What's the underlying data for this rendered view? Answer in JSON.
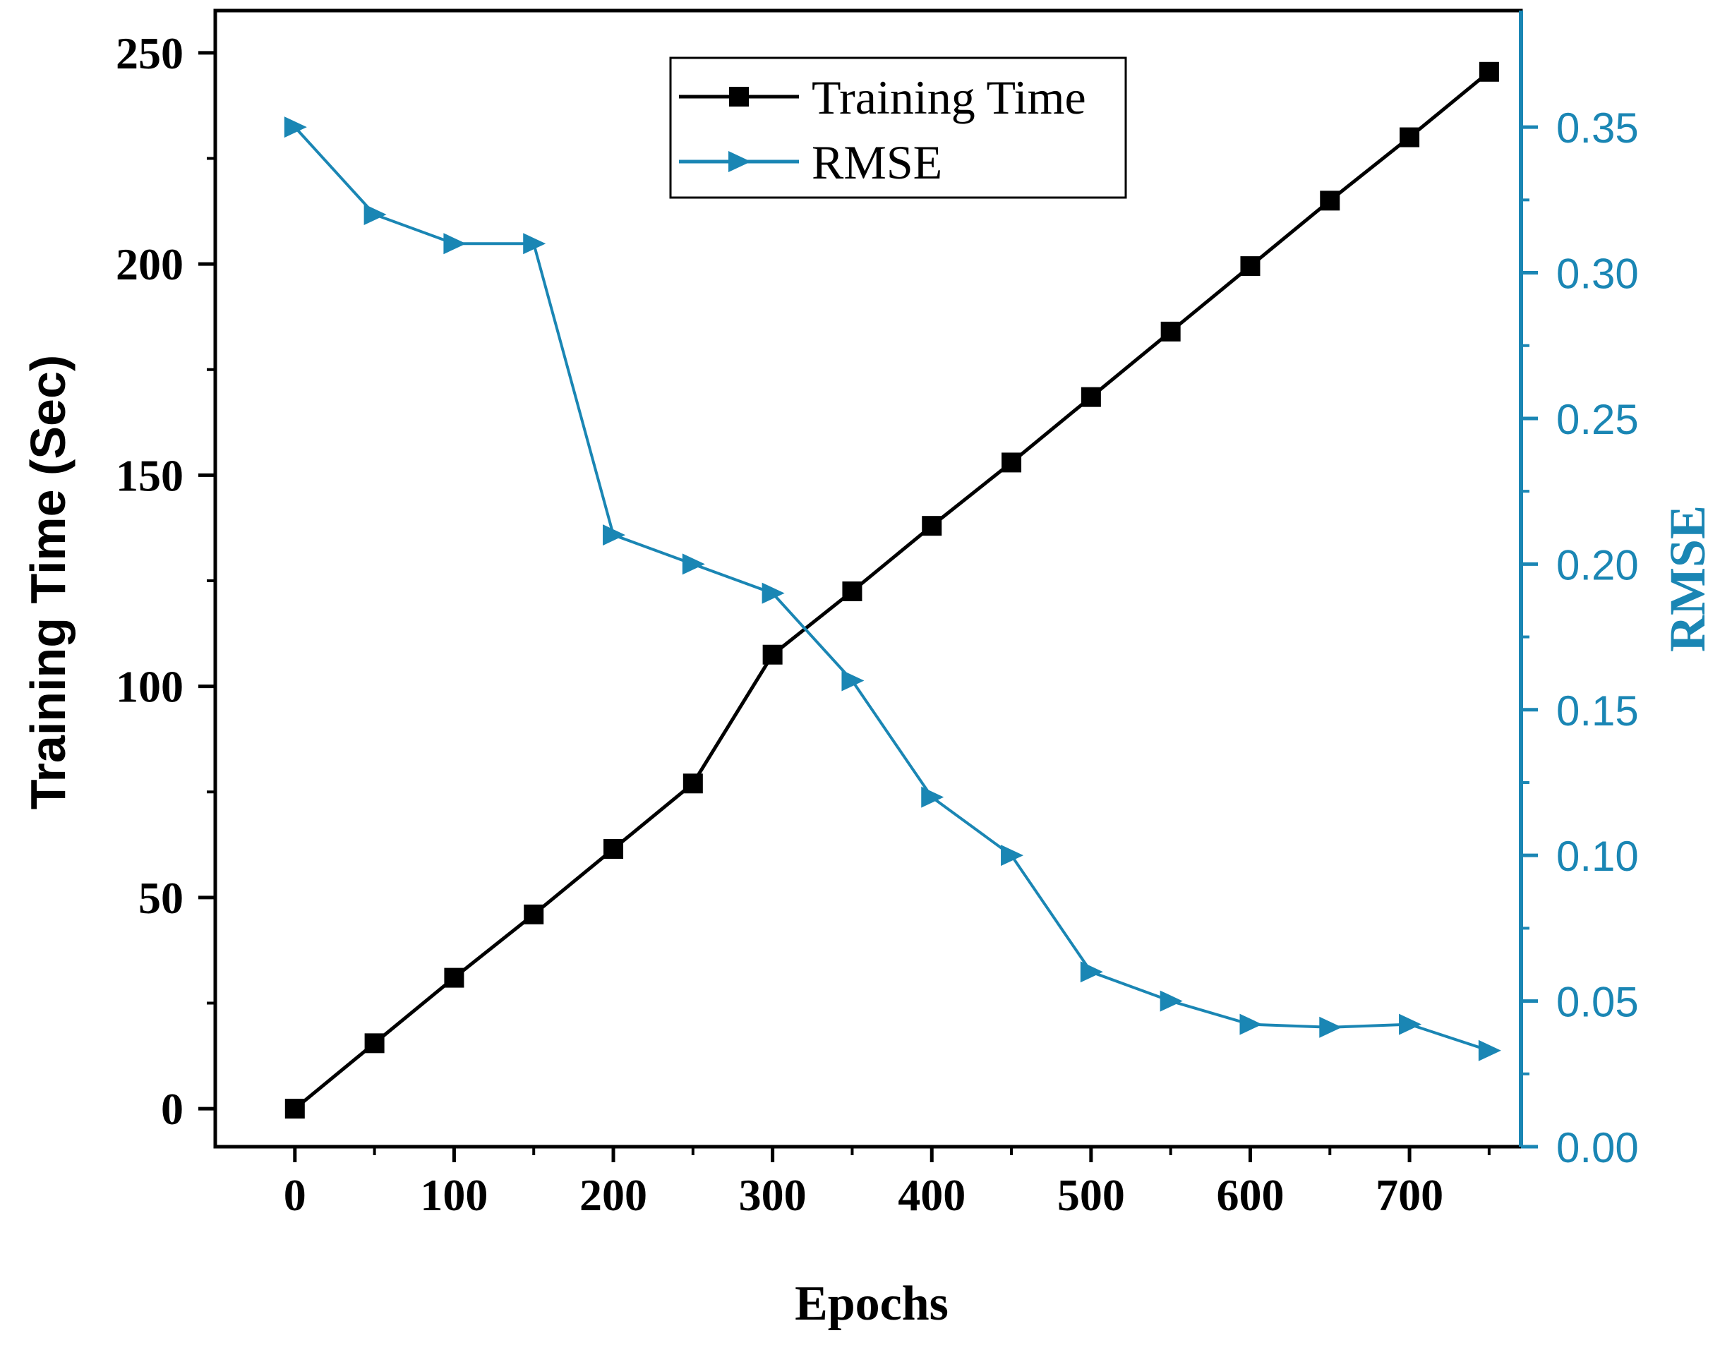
{
  "chart_data": {
    "type": "line",
    "title": "",
    "xlabel": "Epochs",
    "ylabel_left": "Training Time (Sec)",
    "ylabel_right": "RMSE",
    "x": [
      0,
      50,
      100,
      150,
      200,
      250,
      300,
      350,
      400,
      450,
      500,
      550,
      600,
      650,
      700,
      750
    ],
    "xticks": [
      0,
      100,
      200,
      300,
      400,
      500,
      600,
      700
    ],
    "xtick_labels": [
      "0",
      "100",
      "200",
      "300",
      "400",
      "500",
      "600",
      "700"
    ],
    "xlim": [
      -50,
      770
    ],
    "ylim_left": [
      -9,
      260
    ],
    "yticks_left": [
      0,
      50,
      100,
      150,
      200,
      250
    ],
    "ytick_labels_left": [
      "0",
      "50",
      "100",
      "150",
      "200",
      "250"
    ],
    "ylim_right": [
      0,
      0.39
    ],
    "yticks_right": [
      0,
      0.05,
      0.1,
      0.15,
      0.2,
      0.25,
      0.3,
      0.35
    ],
    "ytick_labels_right": [
      "0.00",
      "0.05",
      "0.10",
      "0.15",
      "0.20",
      "0.25",
      "0.30",
      "0.35"
    ],
    "grid": false,
    "legend_position": "top-center",
    "series": [
      {
        "name": "Training Time",
        "axis": "left",
        "marker": "square",
        "color": "#000000",
        "values": [
          0,
          15.5,
          31,
          46,
          61.5,
          77,
          107.5,
          122.5,
          138,
          153,
          168.5,
          184,
          199.5,
          215,
          230,
          245.5
        ]
      },
      {
        "name": "RMSE",
        "axis": "right",
        "marker": "triangle-right",
        "color": "#1a86b4",
        "values": [
          0.35,
          0.32,
          0.31,
          0.31,
          0.21,
          0.2,
          0.19,
          0.16,
          0.12,
          0.1,
          0.06,
          0.05,
          0.042,
          0.041,
          0.042,
          0.033
        ]
      }
    ]
  }
}
